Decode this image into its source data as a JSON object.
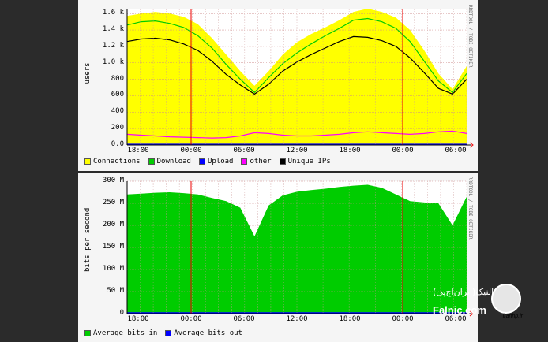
{
  "chart_data": [
    {
      "type": "area",
      "ylabel": "users",
      "side_text": "RRDTOOL / TOBI OETIKER",
      "yticks": [
        "1.6 k",
        "1.4 k",
        "1.2 k",
        "1.0 k",
        "800",
        "600",
        "400",
        "200",
        "0.0"
      ],
      "yvals": [
        1600,
        1400,
        1200,
        1000,
        800,
        600,
        400,
        200,
        0
      ],
      "ylim": [
        0,
        1650
      ],
      "xticks": [
        "18:00",
        "00:00",
        "06:00",
        "12:00",
        "18:00",
        "00:00",
        "06:00"
      ],
      "legend": [
        {
          "label": "Connections",
          "color": "#ffff00"
        },
        {
          "label": "Download",
          "color": "#00cc00"
        },
        {
          "label": "Upload",
          "color": "#0000ff"
        },
        {
          "label": "other",
          "color": "#ff00ff"
        },
        {
          "label": "Unique IPs",
          "color": "#000000"
        }
      ],
      "series": [
        {
          "name": "Connections",
          "color": "#ffff00",
          "values": [
            1570,
            1600,
            1620,
            1600,
            1560,
            1470,
            1300,
            1100,
            900,
            720,
            900,
            1100,
            1250,
            1350,
            1430,
            1520,
            1620,
            1660,
            1620,
            1550,
            1400,
            1150,
            870,
            680,
            960
          ]
        },
        {
          "name": "Download",
          "color": "#00cc00",
          "values": [
            1460,
            1500,
            1510,
            1480,
            1430,
            1330,
            1180,
            980,
            800,
            640,
            820,
            990,
            1120,
            1230,
            1330,
            1420,
            1520,
            1540,
            1500,
            1420,
            1260,
            1020,
            780,
            640,
            870
          ]
        },
        {
          "name": "Unique IPs",
          "color": "#000000",
          "values": [
            1260,
            1290,
            1300,
            1280,
            1230,
            1150,
            1020,
            860,
            730,
            620,
            740,
            900,
            1010,
            1100,
            1180,
            1260,
            1320,
            1310,
            1270,
            1200,
            1060,
            880,
            690,
            620,
            800
          ]
        },
        {
          "name": "other",
          "color": "#ff00ff",
          "values": [
            130,
            120,
            110,
            100,
            95,
            90,
            85,
            90,
            110,
            150,
            140,
            120,
            110,
            110,
            120,
            130,
            150,
            160,
            150,
            140,
            130,
            140,
            160,
            170,
            140
          ]
        },
        {
          "name": "Upload",
          "color": "#0000ff",
          "values": [
            10,
            10,
            10,
            10,
            10,
            10,
            10,
            10,
            10,
            10,
            10,
            10,
            10,
            10,
            10,
            10,
            10,
            10,
            10,
            10,
            10,
            10,
            10,
            10,
            10
          ]
        }
      ]
    },
    {
      "type": "area",
      "ylabel": "bits per second",
      "side_text": "RRDTOOL / TOBI OETIKER",
      "yticks": [
        "300 M",
        "250 M",
        "200 M",
        "150 M",
        "100 M",
        "50 M",
        "0"
      ],
      "yvals": [
        300,
        250,
        200,
        150,
        100,
        50,
        0
      ],
      "ylim": [
        0,
        300
      ],
      "xticks": [
        "18:00",
        "00:00",
        "06:00",
        "12:00",
        "18:00",
        "00:00",
        "06:00"
      ],
      "legend": [
        {
          "label": "Average bits in",
          "color": "#00cc00"
        },
        {
          "label": "Average bits out",
          "color": "#0000ff"
        }
      ],
      "series": [
        {
          "name": "Average bits in",
          "color": "#00cc00",
          "values": [
            270,
            272,
            274,
            275,
            273,
            270,
            262,
            255,
            240,
            175,
            245,
            268,
            276,
            280,
            283,
            287,
            290,
            292,
            285,
            270,
            255,
            252,
            250,
            200,
            265
          ]
        },
        {
          "name": "Average bits out",
          "color": "#0000ff",
          "values": [
            2,
            2,
            2,
            2,
            2,
            2,
            2,
            2,
            2,
            2,
            2,
            2,
            2,
            2,
            2,
            2,
            2,
            2,
            2,
            2,
            2,
            2,
            2,
            2,
            2
          ]
        }
      ]
    }
  ],
  "watermark": {
    "fa": "فالنیک(ایران‌اچ‌پی)",
    "en": "Falnic.com",
    "logo_text": "iranhp.ir"
  }
}
